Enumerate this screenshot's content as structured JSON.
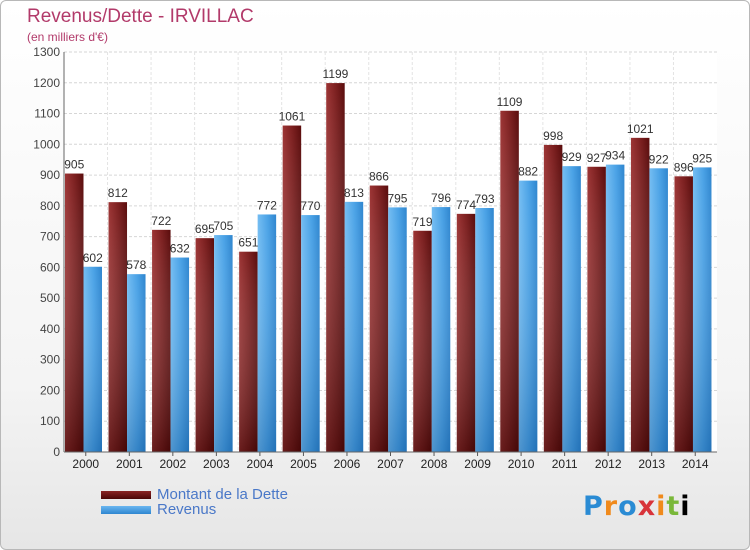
{
  "header": {
    "title": "Revenus/Dette - IRVILLAC",
    "subtitle": "(en milliers d'€)"
  },
  "legend": {
    "debt_label": "Montant de la Dette",
    "revenue_label": "Revenus"
  },
  "logo": {
    "letters": [
      "P",
      "r",
      "o",
      "x",
      "i",
      "t",
      "i"
    ],
    "alt_text": "Proxiti"
  },
  "colors": {
    "title": "#b23a6a",
    "debt_top": "#8a2424",
    "debt_bottom": "#4a0505",
    "revenue_top": "#6ab6f0",
    "revenue_bottom": "#2e86d0",
    "legend_text": "#4a78c8"
  },
  "chart_data": {
    "type": "bar",
    "title": "Revenus/Dette - IRVILLAC",
    "subtitle": "(en milliers d'€)",
    "categories": [
      "2000",
      "2001",
      "2002",
      "2003",
      "2004",
      "2005",
      "2006",
      "2007",
      "2008",
      "2009",
      "2010",
      "2011",
      "2012",
      "2013",
      "2014"
    ],
    "series": [
      {
        "name": "Montant de la Dette",
        "values": [
          905,
          812,
          722,
          695,
          651,
          1061,
          1199,
          866,
          719,
          774,
          1109,
          998,
          927,
          1021,
          896
        ]
      },
      {
        "name": "Revenus",
        "values": [
          602,
          578,
          632,
          705,
          772,
          770,
          813,
          795,
          796,
          793,
          882,
          929,
          934,
          922,
          925
        ]
      }
    ],
    "ylim": [
      0,
      1300
    ],
    "yticks": [
      0,
      100,
      200,
      300,
      400,
      500,
      600,
      700,
      800,
      900,
      1000,
      1100,
      1200,
      1300
    ],
    "grid": true,
    "legend_position": "bottom-left"
  }
}
